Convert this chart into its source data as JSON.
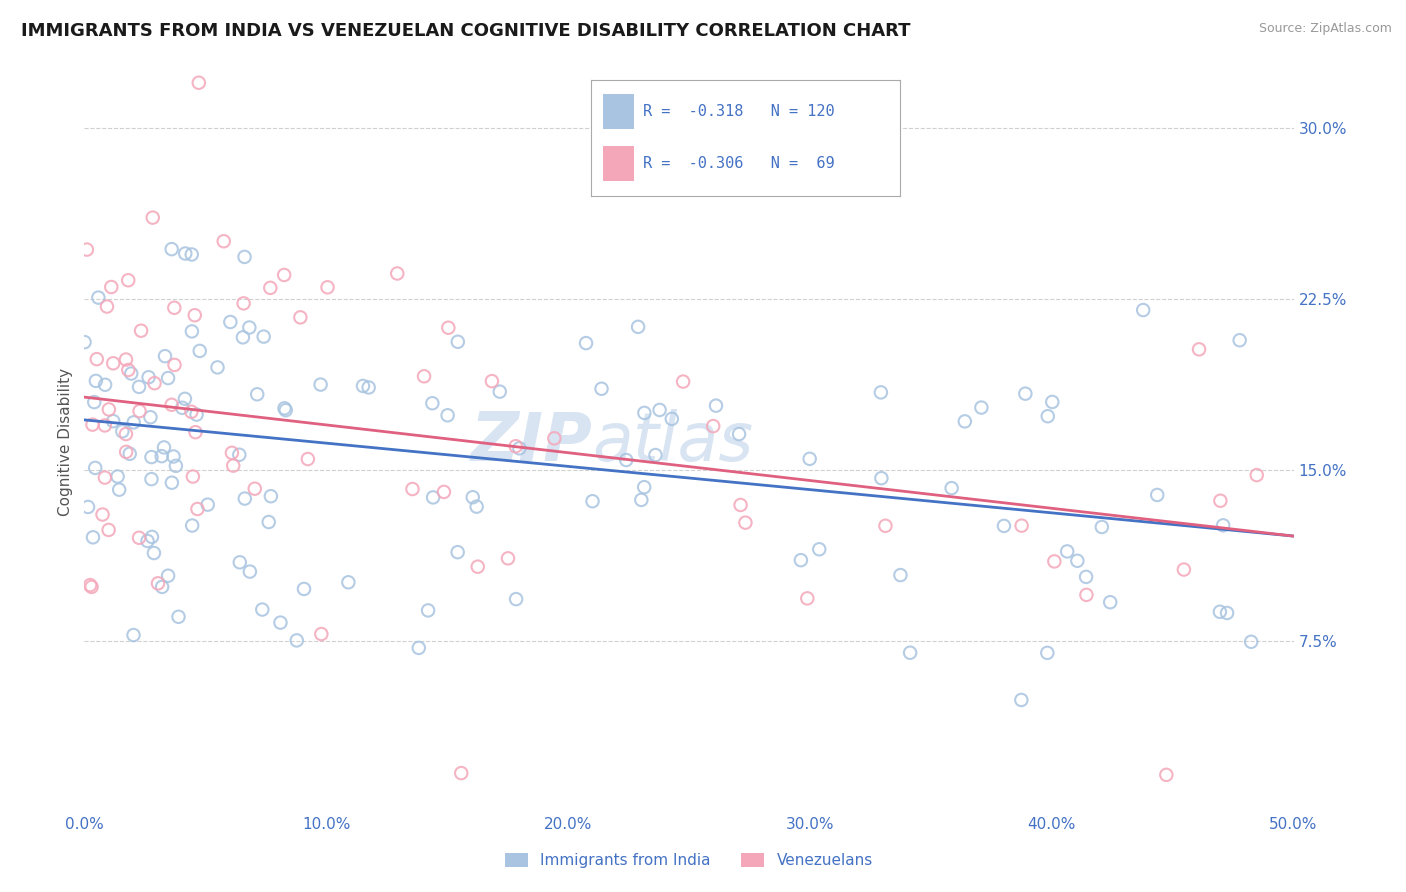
{
  "title": "IMMIGRANTS FROM INDIA VS VENEZUELAN COGNITIVE DISABILITY CORRELATION CHART",
  "source": "Source: ZipAtlas.com",
  "ylabel": "Cognitive Disability",
  "xmin": 0.0,
  "xmax": 0.5,
  "ymin": 0.0,
  "ymax": 0.325,
  "yticks": [
    0.075,
    0.15,
    0.225,
    0.3
  ],
  "ytick_labels": [
    "7.5%",
    "15.0%",
    "22.5%",
    "30.0%"
  ],
  "xticks": [
    0.0,
    0.1,
    0.2,
    0.3,
    0.4,
    0.5
  ],
  "xtick_labels": [
    "0.0%",
    "10.0%",
    "20.0%",
    "30.0%",
    "40.0%",
    "50.0%"
  ],
  "legend_labels": [
    "Immigrants from India",
    "Venezuelans"
  ],
  "india_color": "#a8c4e0",
  "venezuela_color": "#f4a7b9",
  "india_line_color": "#4472c4",
  "venezuela_line_color": "#e06080",
  "india_R": -0.318,
  "india_N": 120,
  "venezuela_R": -0.306,
  "venezuela_N": 69,
  "watermark_zip": "ZIP",
  "watermark_atlas": "atlas",
  "grid_color": "#d0d0d0",
  "background_color": "#ffffff",
  "title_color": "#1a1a1a",
  "tick_label_color": "#4472c4",
  "india_line_start_y": 0.172,
  "india_line_end_y": 0.121,
  "venezuela_line_start_y": 0.182,
  "venezuela_line_end_y": 0.121,
  "india_scatter_seed": 7,
  "venezuela_scatter_seed": 42
}
